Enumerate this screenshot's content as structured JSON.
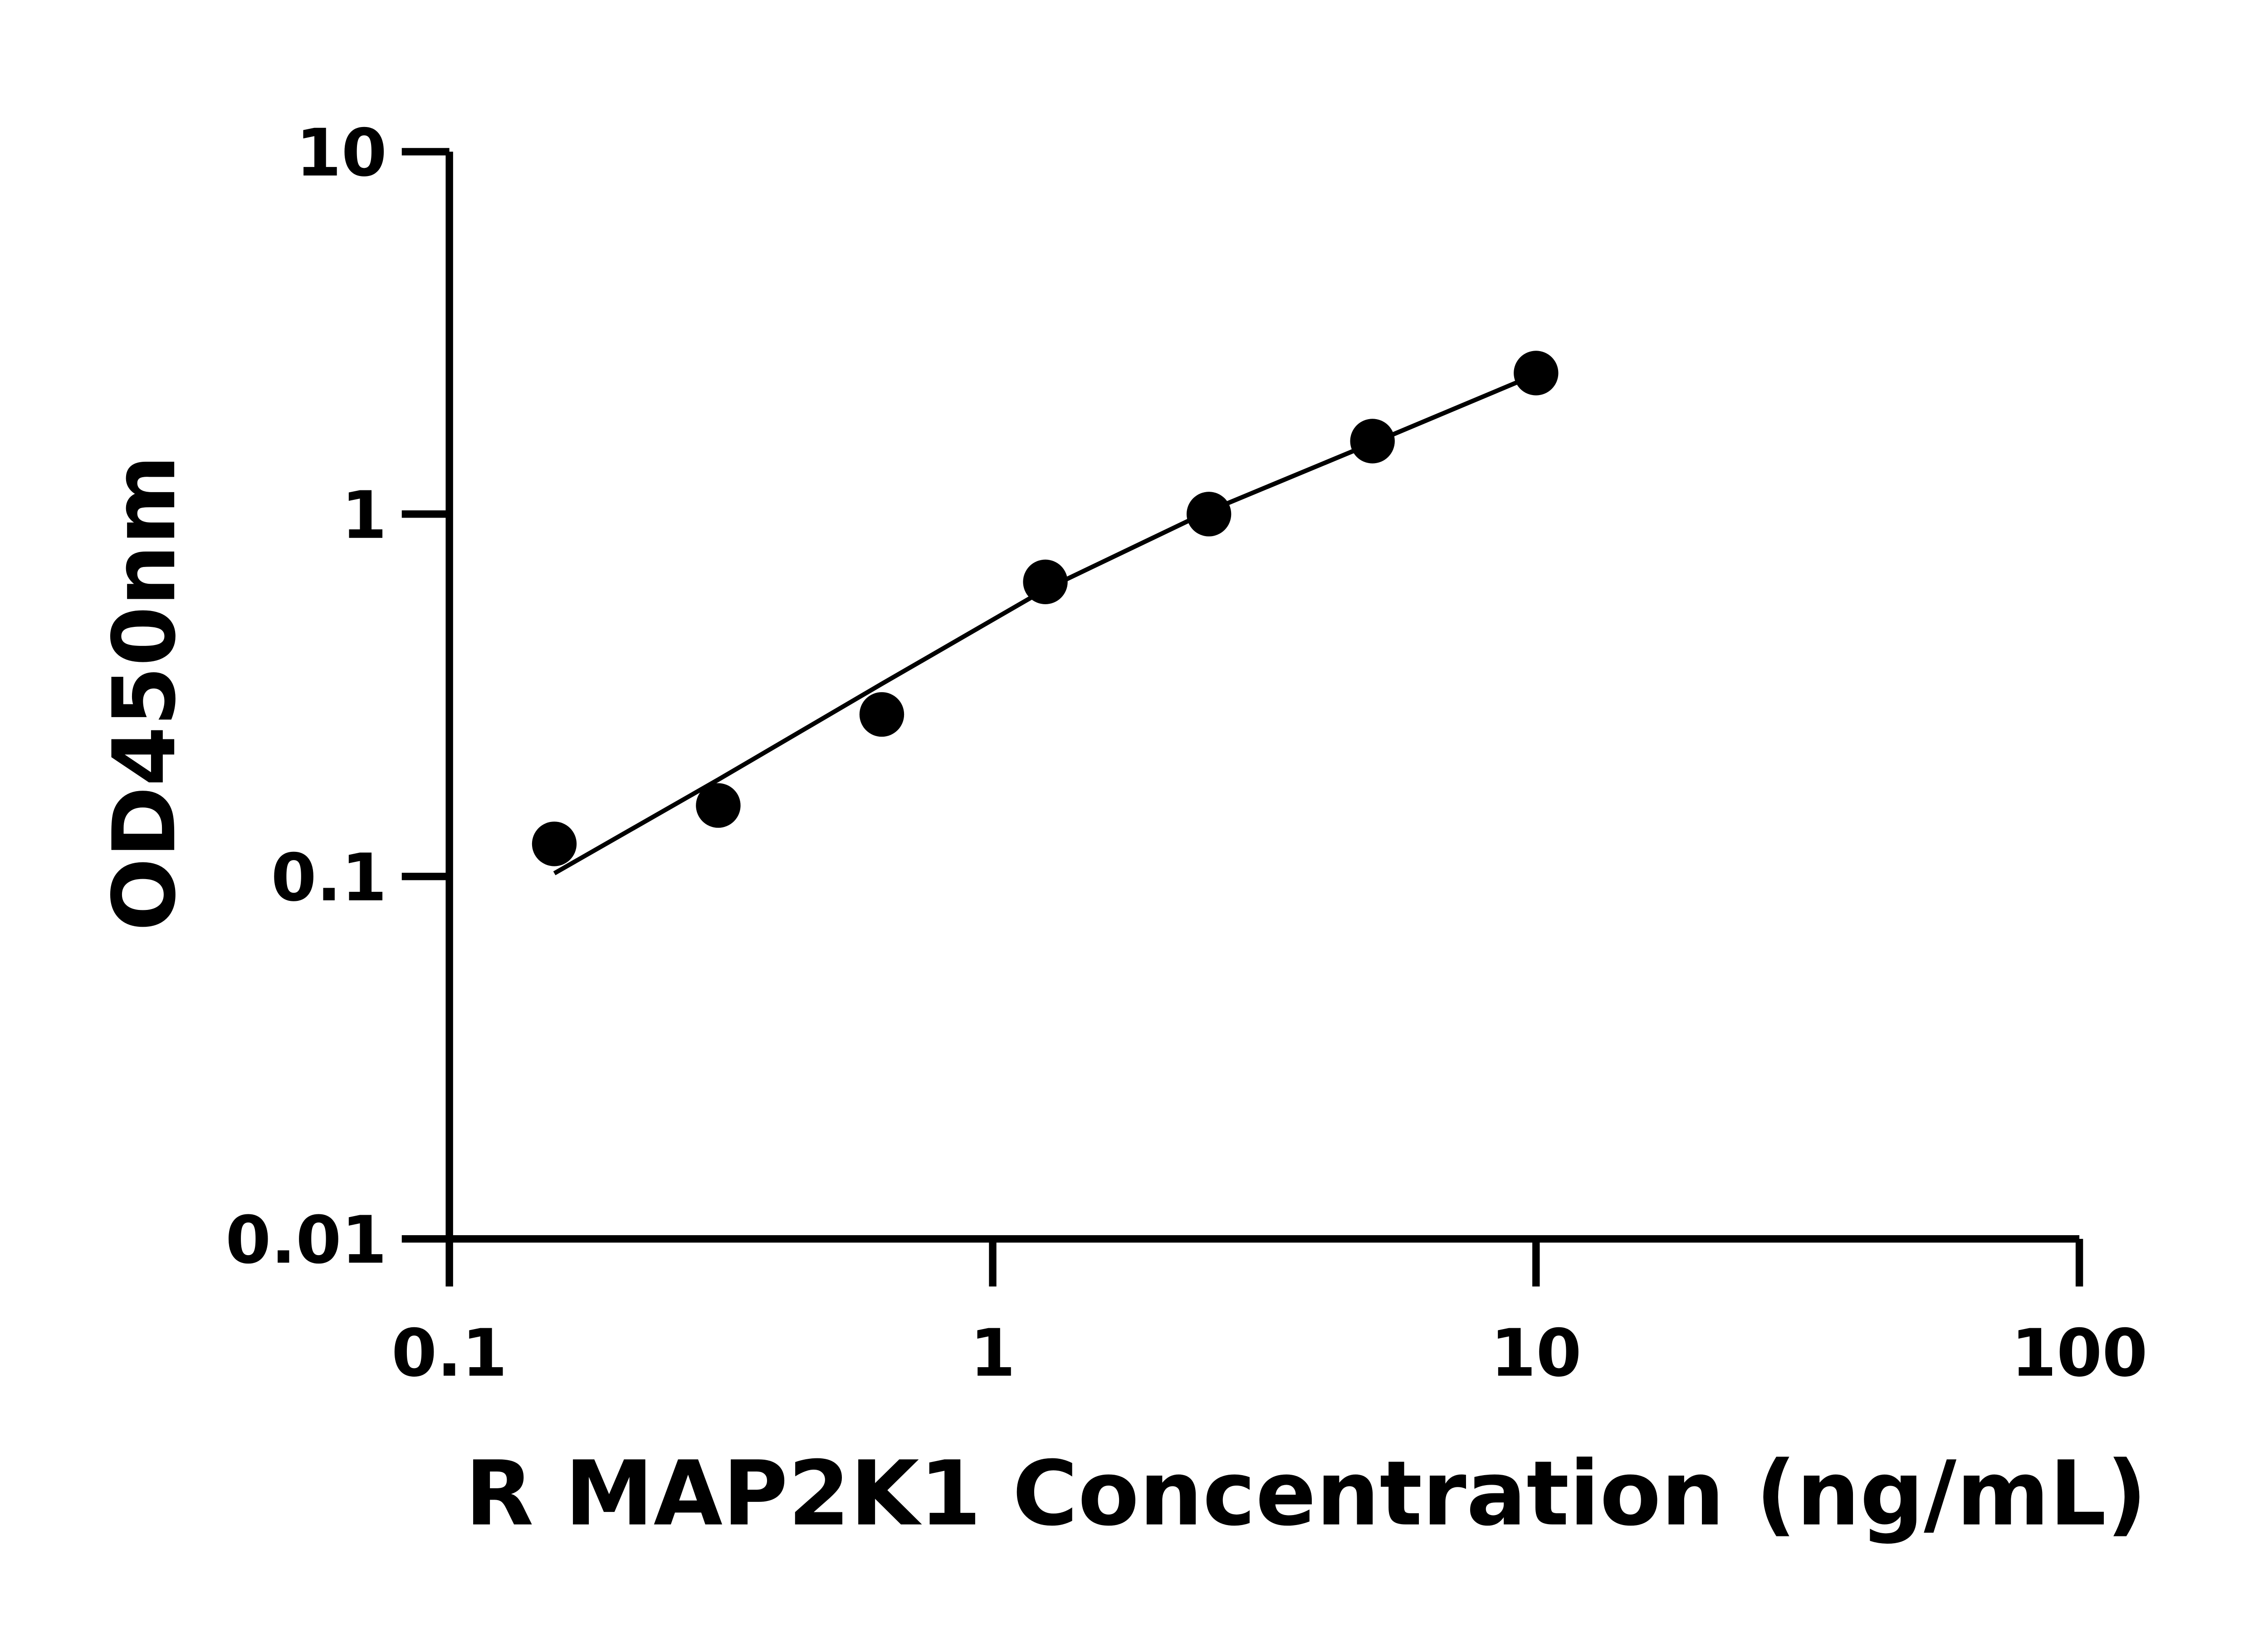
{
  "chart_data": {
    "type": "scatter",
    "title": "",
    "xlabel": "R MAP2K1 Concentration (ng/mL)",
    "ylabel": "OD450nm",
    "x_scale": "log",
    "y_scale": "log",
    "xlim": [
      0.1,
      100
    ],
    "ylim": [
      0.01,
      10
    ],
    "x_ticks": [
      "0.1",
      "1",
      "10",
      "100"
    ],
    "y_ticks": [
      "0.01",
      "0.1",
      "1",
      "10"
    ],
    "grid": false,
    "legend": "none",
    "colors": {
      "points": "#000000",
      "line": "#000000"
    },
    "points": {
      "x": [
        0.156,
        0.3125,
        0.625,
        1.25,
        2.5,
        5,
        10
      ],
      "y": [
        0.123,
        0.157,
        0.28,
        0.65,
        1.0,
        1.59,
        2.45
      ]
    },
    "fit_curve": {
      "x": [
        0.156,
        0.3125,
        0.625,
        1.25,
        2.5,
        5,
        10
      ],
      "y": [
        0.102,
        0.185,
        0.34,
        0.62,
        1.02,
        1.57,
        2.43
      ]
    }
  }
}
